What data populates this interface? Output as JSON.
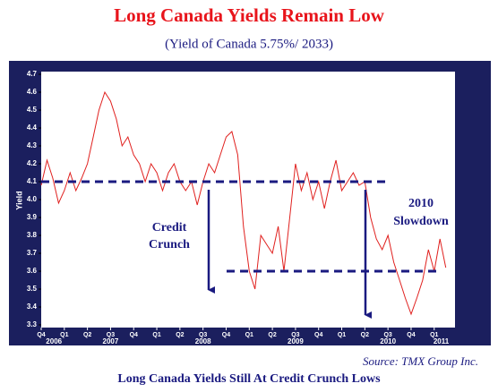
{
  "chart_data": {
    "type": "line",
    "title": "Long Canada Yields Remain Low",
    "subtitle": "(Yield of Canada 5.75%/ 2033)",
    "y_label": "Yield",
    "source": "Source: TMX Group Inc.",
    "footer": "Long Canada Yields Still At Credit Crunch Lows",
    "annotations": [
      "Credit",
      "Crunch",
      "2010",
      "Slowdown"
    ],
    "reference_lines": [
      4.1,
      3.6
    ],
    "color": "#e0201e",
    "xlim": [
      0,
      17.9
    ],
    "ylim": [
      3.3,
      4.7
    ],
    "yticks": [
      3.3,
      3.4,
      3.5,
      3.6,
      3.7,
      3.8,
      3.9,
      {
        "value": 4,
        "label": "4.0"
      },
      4.1,
      4.2,
      4.3,
      4.4,
      4.5,
      4.6,
      4.7
    ],
    "xticks": [
      {
        "value": 0,
        "label": "Q4"
      },
      {
        "value": 1,
        "label": "Q1"
      },
      {
        "value": 2,
        "label": "Q2"
      },
      {
        "value": 3,
        "label": "Q3"
      },
      {
        "value": 4,
        "label": "Q4"
      },
      {
        "value": 5,
        "label": "Q1"
      },
      {
        "value": 6,
        "label": "Q2"
      },
      {
        "value": 7,
        "label": "Q3"
      },
      {
        "value": 8,
        "label": "Q4"
      },
      {
        "value": 9,
        "label": "Q1"
      },
      {
        "value": 10,
        "label": "Q2"
      },
      {
        "value": 11,
        "label": "Q3"
      },
      {
        "value": 12,
        "label": "Q4"
      },
      {
        "value": 13,
        "label": "Q1"
      },
      {
        "value": 14,
        "label": "Q2"
      },
      {
        "value": 15,
        "label": "Q3"
      },
      {
        "value": 16,
        "label": "Q4"
      },
      {
        "value": 17,
        "label": "Q1"
      }
    ],
    "year_labels": [
      {
        "value": 0.55,
        "label": "2006"
      },
      {
        "value": 3,
        "label": "2007"
      },
      {
        "value": 7,
        "label": "2008"
      },
      {
        "value": 11,
        "label": "2009"
      },
      {
        "value": 15,
        "label": "2010"
      },
      {
        "value": 17.3,
        "label": "2011"
      }
    ],
    "x": [
      0,
      0.25,
      0.5,
      0.75,
      1,
      1.25,
      1.5,
      1.75,
      2,
      2.25,
      2.5,
      2.75,
      3,
      3.25,
      3.5,
      3.75,
      4,
      4.25,
      4.5,
      4.75,
      5,
      5.25,
      5.5,
      5.75,
      6,
      6.25,
      6.5,
      6.75,
      7,
      7.25,
      7.5,
      7.75,
      8,
      8.25,
      8.5,
      8.75,
      9,
      9.25,
      9.5,
      9.75,
      10,
      10.25,
      10.5,
      10.75,
      11,
      11.25,
      11.5,
      11.75,
      12,
      12.25,
      12.5,
      12.75,
      13,
      13.25,
      13.5,
      13.75,
      14,
      14.25,
      14.5,
      14.75,
      15,
      15.25,
      15.5,
      15.75,
      16,
      16.25,
      16.5,
      16.75,
      17,
      17.25,
      17.5
    ],
    "values": [
      4.08,
      4.22,
      4.12,
      3.98,
      4.05,
      4.15,
      4.05,
      4.12,
      4.2,
      4.35,
      4.5,
      4.6,
      4.55,
      4.45,
      4.3,
      4.35,
      4.25,
      4.2,
      4.1,
      4.2,
      4.15,
      4.05,
      4.15,
      4.2,
      4.1,
      4.05,
      4.1,
      3.97,
      4.1,
      4.2,
      4.15,
      4.25,
      4.35,
      4.38,
      4.25,
      3.85,
      3.6,
      3.5,
      3.8,
      3.75,
      3.7,
      3.85,
      3.6,
      3.9,
      4.2,
      4.05,
      4.15,
      4.0,
      4.1,
      3.95,
      4.1,
      4.22,
      4.05,
      4.1,
      4.15,
      4.08,
      4.1,
      3.9,
      3.78,
      3.72,
      3.8,
      3.65,
      3.55,
      3.45,
      3.36,
      3.45,
      3.55,
      3.72,
      3.6,
      3.78,
      3.62
    ]
  }
}
